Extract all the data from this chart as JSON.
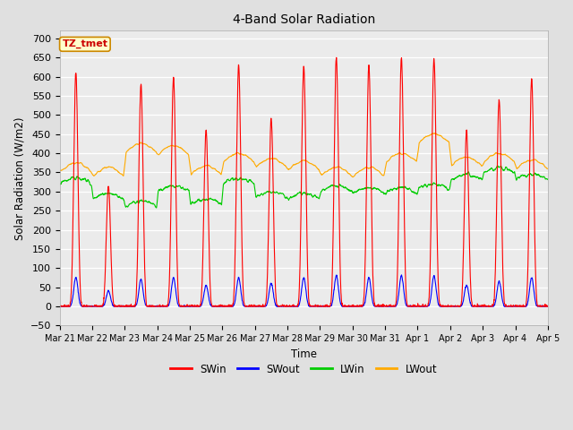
{
  "title": "4-Band Solar Radiation",
  "xlabel": "Time",
  "ylabel": "Solar Radiation (W/m2)",
  "annotation": "TZ_tmet",
  "ylim": [
    -50,
    720
  ],
  "yticks": [
    -50,
    0,
    50,
    100,
    150,
    200,
    250,
    300,
    350,
    400,
    450,
    500,
    550,
    600,
    650,
    700
  ],
  "colors": {
    "SWin": "#ff0000",
    "SWout": "#0000ff",
    "LWin": "#00cc00",
    "LWout": "#ffaa00"
  },
  "line_width": 0.8,
  "bg_color": "#e0e0e0",
  "plot_bg_color": "#ebebeb",
  "x_tick_labels": [
    "Mar 21",
    "Mar 22",
    "Mar 23",
    "Mar 24",
    "Mar 25",
    "Mar 26",
    "Mar 27",
    "Mar 28",
    "Mar 29",
    "Mar 30",
    "Mar 31",
    "Apr 1",
    "Apr 2",
    "Apr 3",
    "Apr 4",
    "Apr 5"
  ],
  "n_days": 15,
  "points_per_day": 144,
  "sw_peaks": [
    610,
    315,
    580,
    600,
    460,
    630,
    490,
    630,
    650,
    630,
    650,
    648,
    460,
    540,
    595
  ],
  "sw_out_peaks": [
    75,
    40,
    70,
    75,
    55,
    75,
    60,
    75,
    80,
    75,
    80,
    80,
    55,
    65,
    75
  ],
  "lwin_base": [
    320,
    280,
    260,
    300,
    265,
    320,
    285,
    280,
    300,
    295,
    295,
    305,
    330,
    348,
    330
  ],
  "lwout_base": [
    350,
    338,
    400,
    395,
    342,
    375,
    362,
    355,
    338,
    338,
    375,
    425,
    365,
    375,
    358
  ]
}
